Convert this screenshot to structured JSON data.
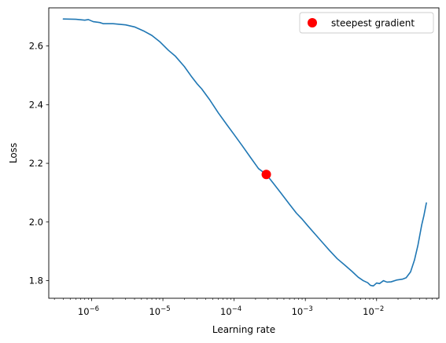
{
  "chart_data": {
    "type": "line",
    "title": "",
    "xlabel": "Learning rate",
    "ylabel": "Loss",
    "xscale": "log",
    "xlim": [
      2.5e-07,
      0.075
    ],
    "ylim": [
      1.74,
      2.73
    ],
    "grid": false,
    "legend_position": "top-right",
    "x_ticks": [
      {
        "value": 1e-06,
        "base": "10",
        "exp": "−6"
      },
      {
        "value": 1e-05,
        "base": "10",
        "exp": "−5"
      },
      {
        "value": 0.0001,
        "base": "10",
        "exp": "−4"
      },
      {
        "value": 0.001,
        "base": "10",
        "exp": "−3"
      },
      {
        "value": 0.01,
        "base": "10",
        "exp": "−2"
      }
    ],
    "y_ticks": [
      {
        "value": 1.8,
        "label": "1.8"
      },
      {
        "value": 2.0,
        "label": "2.0"
      },
      {
        "value": 2.2,
        "label": "2.2"
      },
      {
        "value": 2.4,
        "label": "2.4"
      },
      {
        "value": 2.6,
        "label": "2.6"
      }
    ],
    "series": [
      {
        "color": "#1f77b4",
        "points": [
          [
            4e-07,
            2.692
          ],
          [
            6e-07,
            2.691
          ],
          [
            8e-07,
            2.688
          ],
          [
            9e-07,
            2.69
          ],
          [
            1.05e-06,
            2.683
          ],
          [
            1.3e-06,
            2.68
          ],
          [
            1.45e-06,
            2.676
          ],
          [
            2e-06,
            2.676
          ],
          [
            3e-06,
            2.672
          ],
          [
            4e-06,
            2.665
          ],
          [
            5.5e-06,
            2.65
          ],
          [
            7e-06,
            2.636
          ],
          [
            9e-06,
            2.615
          ],
          [
            1.2e-05,
            2.585
          ],
          [
            1.5e-05,
            2.565
          ],
          [
            2e-05,
            2.53
          ],
          [
            2.5e-05,
            2.497
          ],
          [
            3e-05,
            2.472
          ],
          [
            3.5e-05,
            2.454
          ],
          [
            4.5e-05,
            2.418
          ],
          [
            6e-05,
            2.372
          ],
          [
            8e-05,
            2.33
          ],
          [
            0.0001,
            2.298
          ],
          [
            0.00013,
            2.26
          ],
          [
            0.00017,
            2.22
          ],
          [
            0.00022,
            2.182
          ],
          [
            0.000283,
            2.162
          ],
          [
            0.00035,
            2.134
          ],
          [
            0.00045,
            2.1
          ],
          [
            0.0006,
            2.06
          ],
          [
            0.00075,
            2.03
          ],
          [
            0.0009,
            2.01
          ],
          [
            0.0011,
            1.985
          ],
          [
            0.0014,
            1.956
          ],
          [
            0.0018,
            1.926
          ],
          [
            0.0022,
            1.902
          ],
          [
            0.0028,
            1.875
          ],
          [
            0.0035,
            1.855
          ],
          [
            0.0045,
            1.832
          ],
          [
            0.0055,
            1.812
          ],
          [
            0.0065,
            1.8
          ],
          [
            0.0075,
            1.793
          ],
          [
            0.0082,
            1.784
          ],
          [
            0.009,
            1.782
          ],
          [
            0.01,
            1.792
          ],
          [
            0.011,
            1.79
          ],
          [
            0.0125,
            1.8
          ],
          [
            0.014,
            1.795
          ],
          [
            0.016,
            1.796
          ],
          [
            0.019,
            1.802
          ],
          [
            0.023,
            1.805
          ],
          [
            0.026,
            1.81
          ],
          [
            0.03,
            1.83
          ],
          [
            0.034,
            1.87
          ],
          [
            0.038,
            1.92
          ],
          [
            0.043,
            1.99
          ],
          [
            0.046,
            2.02
          ],
          [
            0.05,
            2.065
          ]
        ]
      },
      {
        "name": "steepest gradient",
        "kind": "marker",
        "color": "#ff0000",
        "points": [
          [
            0.000283,
            2.162
          ]
        ]
      }
    ]
  }
}
